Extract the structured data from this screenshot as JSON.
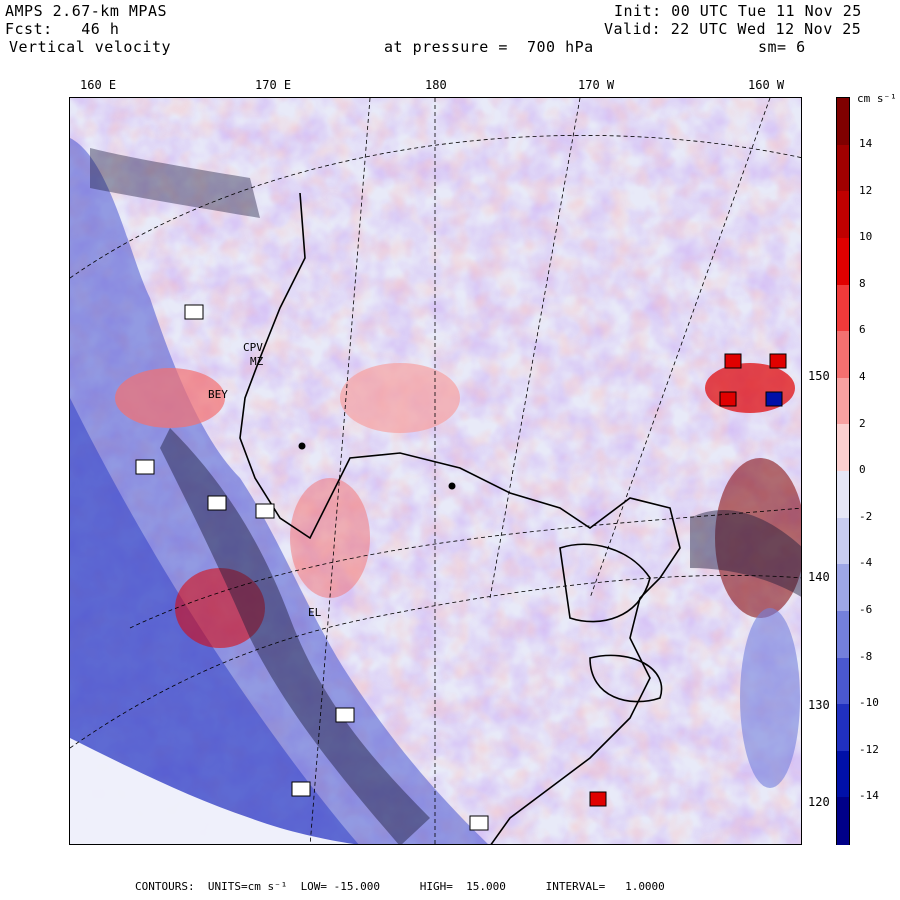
{
  "header": {
    "model": "AMPS 2.67-km MPAS",
    "forecast": "Fcst:   46 h",
    "field": "Vertical velocity",
    "init": "Init: 00 UTC Tue 11 Nov 25",
    "valid": "Valid: 22 UTC Wed 12 Nov 25",
    "level": "at pressure =  700 hPa",
    "smoothing": "sm= 6"
  },
  "map": {
    "lon_labels": [
      "160 E",
      "170 E",
      "180",
      "170 W",
      "160 W"
    ],
    "lat_labels": [
      "150 W",
      "140 W",
      "130 W",
      "120 W"
    ],
    "stations": [
      "CPV",
      "MZ",
      "BEY",
      "EL"
    ]
  },
  "colorbar": {
    "units": "cm s⁻¹",
    "ticks": [
      "14",
      "12",
      "10",
      "8",
      "6",
      "4",
      "2",
      "0",
      "-2",
      "-4",
      "-6",
      "-8",
      "-10",
      "-12",
      "-14"
    ],
    "colors": [
      "#7f0000",
      "#a00000",
      "#c00000",
      "#e00000",
      "#f03a3a",
      "#f47070",
      "#f7a1a1",
      "#fbd0d0",
      "#e6e6f6",
      "#c8ccf0",
      "#9ea6e6",
      "#7480dc",
      "#4a58d0",
      "#2030c0",
      "#0010a8",
      "#000088"
    ]
  },
  "footer": {
    "text": "CONTOURS:  UNITS=cm s⁻¹  LOW= -15.000      HIGH=  15.000      INTERVAL=   1.0000"
  }
}
